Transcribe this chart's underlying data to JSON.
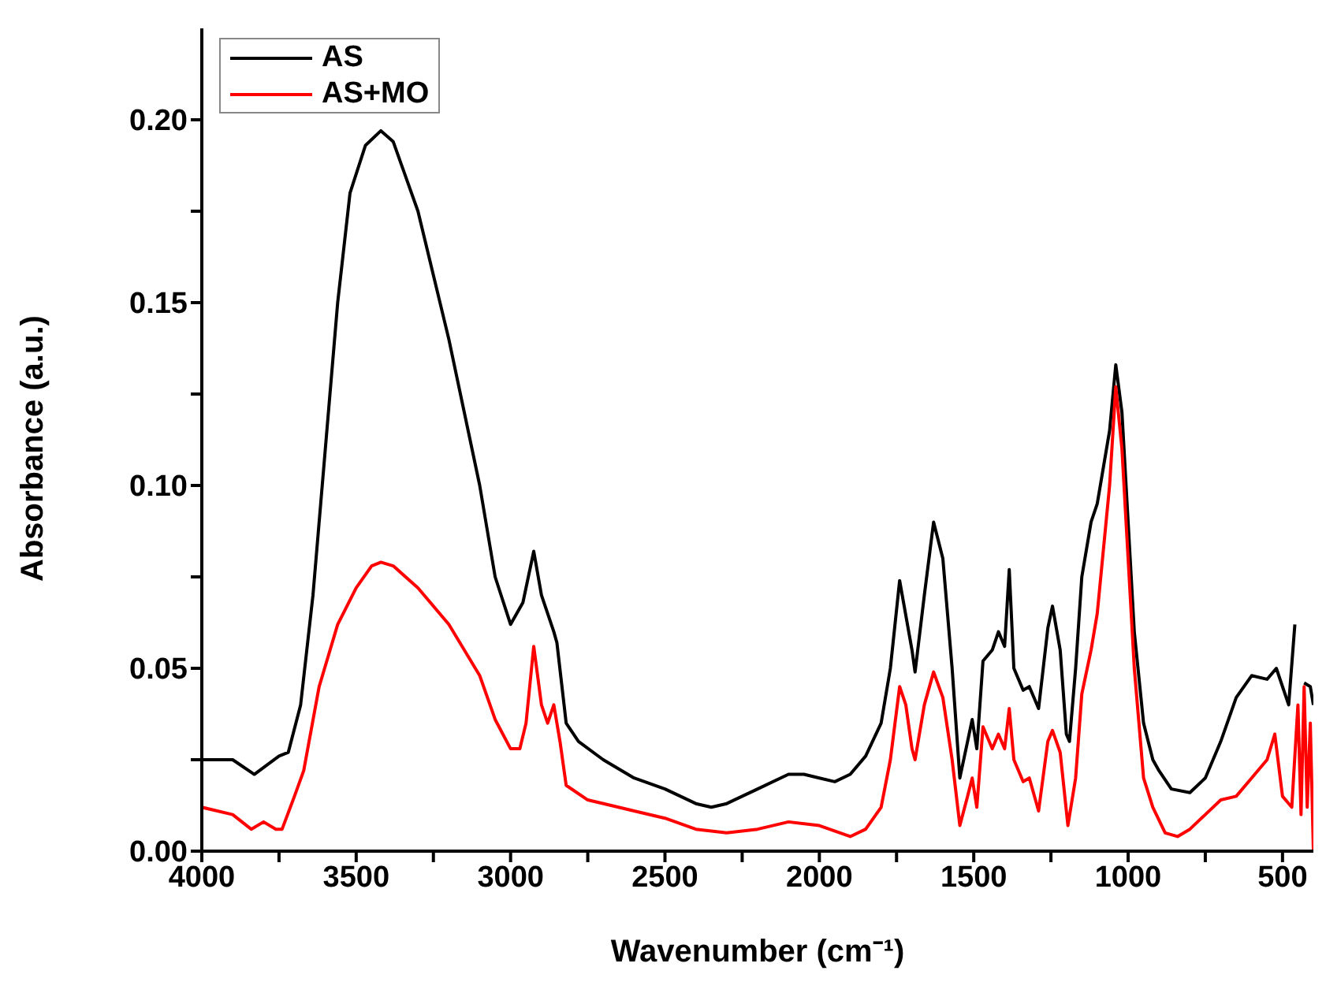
{
  "chart_data": {
    "type": "line",
    "xlabel": "Wavenumber (cm⁻¹)",
    "ylabel": "Absorbance (a.u.)",
    "xlim": [
      4000,
      400
    ],
    "ylim": [
      0,
      0.225
    ],
    "xticks": [
      4000,
      {
        "value": 3750,
        "label": null
      },
      3500,
      {
        "value": 3250,
        "label": null
      },
      3000,
      {
        "value": 2750,
        "label": null
      },
      2500,
      {
        "value": 2250,
        "label": null
      },
      2000,
      {
        "value": 1750,
        "label": null
      },
      1500,
      {
        "value": 1250,
        "label": null
      },
      1000,
      {
        "value": 750,
        "label": null
      },
      500
    ],
    "yticks": [
      {
        "value": 0,
        "label": "0.00"
      },
      {
        "value": 0.025,
        "label": null
      },
      0.05,
      {
        "value": 0.075,
        "label": null
      },
      {
        "value": 0.1,
        "label": "0.10"
      },
      {
        "value": 0.125,
        "label": null
      },
      0.15,
      {
        "value": 0.175,
        "label": null
      },
      {
        "value": 0.2,
        "label": "0.20"
      }
    ],
    "grid": false,
    "legend": "top left",
    "marker": "none",
    "line_style": "solid",
    "series": [
      {
        "name": "AS",
        "color": "#000000",
        "x": [
          4000,
          3900,
          3830,
          3750,
          3720,
          3680,
          3640,
          3600,
          3560,
          3520,
          3470,
          3420,
          3380,
          3300,
          3200,
          3100,
          3050,
          3000,
          2960,
          2925,
          2900,
          2860,
          2850,
          2820,
          2780,
          2700,
          2600,
          2500,
          2400,
          2350,
          2300,
          2200,
          2100,
          2050,
          2000,
          1950,
          1900,
          1850,
          1800,
          1770,
          1740,
          1700,
          1690,
          1660,
          1630,
          1600,
          1570,
          1545,
          1520,
          1505,
          1490,
          1470,
          1440,
          1420,
          1400,
          1385,
          1370,
          1340,
          1320,
          1290,
          1260,
          1245,
          1220,
          1200,
          1190,
          1170,
          1150,
          1120,
          1100,
          1060,
          1040,
          1020,
          1000,
          980,
          950,
          920,
          900,
          860,
          800,
          750,
          700,
          650,
          600,
          550,
          520,
          480,
          460,
          450,
          430,
          410,
          400
        ],
        "values": [
          0.025,
          0.025,
          0.021,
          0.026,
          0.027,
          0.04,
          0.07,
          0.11,
          0.15,
          0.18,
          0.193,
          0.197,
          0.194,
          0.175,
          0.14,
          0.1,
          0.075,
          0.062,
          0.068,
          0.082,
          0.07,
          0.06,
          0.057,
          0.035,
          0.03,
          0.025,
          0.02,
          0.017,
          0.013,
          0.012,
          0.013,
          0.017,
          0.021,
          0.021,
          0.02,
          0.019,
          0.021,
          0.026,
          0.035,
          0.05,
          0.074,
          0.055,
          0.049,
          0.07,
          0.09,
          0.08,
          0.05,
          0.02,
          0.03,
          0.036,
          0.028,
          0.052,
          0.055,
          0.06,
          0.056,
          0.077,
          0.05,
          0.044,
          0.045,
          0.039,
          0.061,
          0.067,
          0.055,
          0.032,
          0.03,
          0.05,
          0.075,
          0.09,
          0.095,
          0.115,
          0.133,
          0.12,
          0.09,
          0.06,
          0.035,
          0.025,
          0.022,
          0.017,
          0.016,
          0.02,
          0.03,
          0.042,
          0.048,
          0.047,
          0.05,
          0.04,
          0.062,
          null,
          0.046,
          0.045,
          0.04
        ]
      },
      {
        "name": "AS+MO",
        "color": "#ff0000",
        "x": [
          4000,
          3900,
          3840,
          3800,
          3760,
          3740,
          3700,
          3670,
          3620,
          3560,
          3500,
          3450,
          3420,
          3380,
          3300,
          3200,
          3100,
          3050,
          3000,
          2970,
          2950,
          2925,
          2900,
          2880,
          2860,
          2840,
          2820,
          2750,
          2600,
          2500,
          2400,
          2300,
          2200,
          2100,
          2000,
          1900,
          1850,
          1800,
          1770,
          1740,
          1720,
          1700,
          1690,
          1660,
          1630,
          1600,
          1570,
          1545,
          1520,
          1505,
          1490,
          1470,
          1440,
          1420,
          1400,
          1385,
          1370,
          1340,
          1320,
          1290,
          1260,
          1245,
          1220,
          1195,
          1170,
          1150,
          1120,
          1100,
          1060,
          1040,
          1020,
          1000,
          980,
          950,
          920,
          880,
          840,
          800,
          750,
          700,
          650,
          600,
          550,
          525,
          500,
          470,
          450,
          440,
          430,
          420,
          410,
          400
        ],
        "values": [
          0.012,
          0.01,
          0.006,
          0.008,
          0.006,
          0.006,
          0.015,
          0.022,
          0.045,
          0.062,
          0.072,
          0.078,
          0.079,
          0.078,
          0.072,
          0.062,
          0.048,
          0.036,
          0.028,
          0.028,
          0.035,
          0.056,
          0.04,
          0.035,
          0.04,
          0.03,
          0.018,
          0.014,
          0.011,
          0.009,
          0.006,
          0.005,
          0.006,
          0.008,
          0.007,
          0.004,
          0.006,
          0.012,
          0.025,
          0.045,
          0.04,
          0.028,
          0.025,
          0.04,
          0.049,
          0.042,
          0.025,
          0.007,
          0.015,
          0.02,
          0.012,
          0.034,
          0.028,
          0.032,
          0.028,
          0.039,
          0.025,
          0.019,
          0.02,
          0.011,
          0.03,
          0.033,
          0.027,
          0.007,
          0.02,
          0.043,
          0.055,
          0.065,
          0.1,
          0.127,
          0.11,
          0.08,
          0.05,
          0.02,
          0.012,
          0.005,
          0.004,
          0.006,
          0.01,
          0.014,
          0.015,
          0.02,
          0.025,
          0.032,
          0.015,
          0.012,
          0.04,
          0.01,
          0.045,
          0.012,
          0.035,
          0
        ]
      }
    ]
  }
}
